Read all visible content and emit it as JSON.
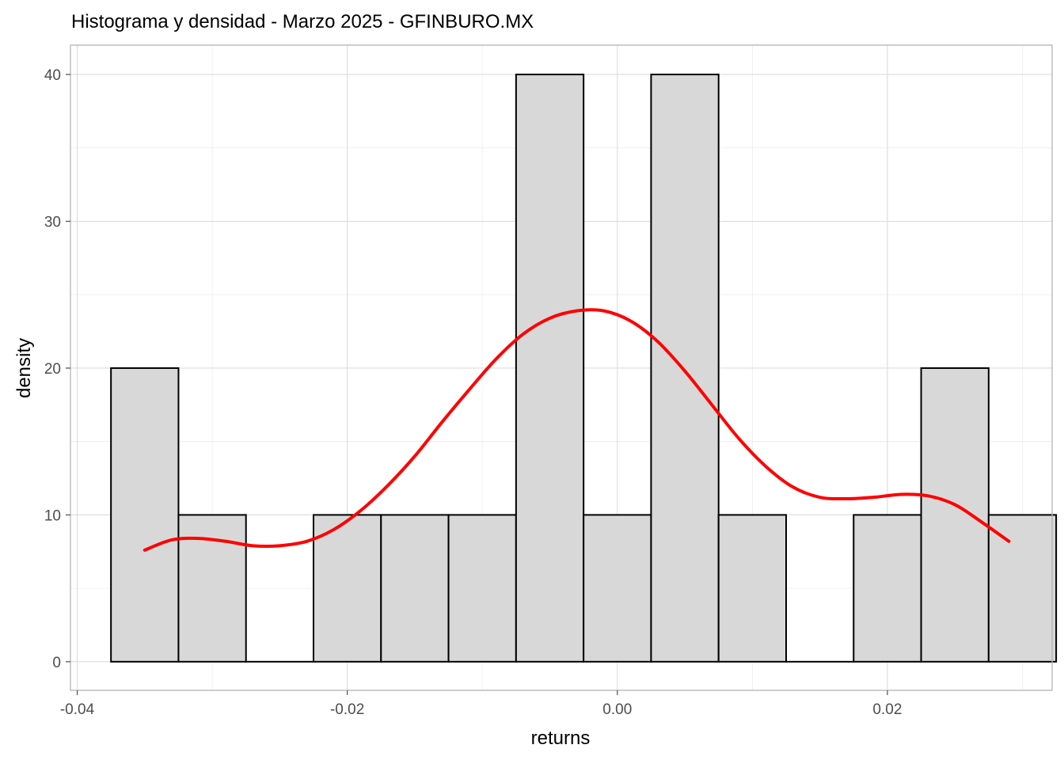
{
  "chart_data": {
    "type": "bar",
    "title": "Histograma y densidad - Marzo 2025 - GFINBURO.MX",
    "xlabel": "returns",
    "ylabel": "density",
    "xlim": [
      -0.0405,
      0.0322
    ],
    "ylim": [
      -1.95,
      42
    ],
    "x_ticks": [
      -0.04,
      -0.02,
      0.0,
      0.02
    ],
    "x_tick_labels": [
      "-0.04",
      "-0.02",
      "0.00",
      "0.02"
    ],
    "x_minor_ticks": [
      -0.03,
      -0.01,
      0.01,
      0.03
    ],
    "y_ticks": [
      0,
      10,
      20,
      30,
      40
    ],
    "y_tick_labels": [
      "0",
      "10",
      "20",
      "30",
      "40"
    ],
    "y_minor_ticks": [
      5,
      15,
      25,
      35
    ],
    "grid": true,
    "colors": {
      "bar_fill": "#d8d8d8",
      "bar_outline": "#000000",
      "density_line": "#ff0000"
    },
    "bins": [
      {
        "x0": -0.0375,
        "x1": -0.0325,
        "density": 20
      },
      {
        "x0": -0.0325,
        "x1": -0.0275,
        "density": 10
      },
      {
        "x0": -0.0275,
        "x1": -0.0225,
        "density": 0
      },
      {
        "x0": -0.0225,
        "x1": -0.0175,
        "density": 10
      },
      {
        "x0": -0.0175,
        "x1": -0.0125,
        "density": 10
      },
      {
        "x0": -0.0125,
        "x1": -0.0075,
        "density": 10
      },
      {
        "x0": -0.0075,
        "x1": -0.0025,
        "density": 40
      },
      {
        "x0": -0.0025,
        "x1": 0.0025,
        "density": 10
      },
      {
        "x0": 0.0025,
        "x1": 0.0075,
        "density": 40
      },
      {
        "x0": 0.0075,
        "x1": 0.0125,
        "density": 10
      },
      {
        "x0": 0.0125,
        "x1": 0.0175,
        "density": 0
      },
      {
        "x0": 0.0175,
        "x1": 0.0225,
        "density": 10
      },
      {
        "x0": 0.0225,
        "x1": 0.0275,
        "density": 20
      },
      {
        "x0": 0.0275,
        "x1": 0.0325,
        "density": 10
      }
    ],
    "density_curve": {
      "x": [
        -0.035,
        -0.033,
        -0.031,
        -0.029,
        -0.027,
        -0.025,
        -0.023,
        -0.021,
        -0.019,
        -0.017,
        -0.015,
        -0.013,
        -0.011,
        -0.009,
        -0.007,
        -0.005,
        -0.003,
        -0.001,
        0.001,
        0.003,
        0.005,
        0.007,
        0.009,
        0.011,
        0.013,
        0.015,
        0.017,
        0.019,
        0.021,
        0.023,
        0.025,
        0.027,
        0.029
      ],
      "y": [
        7.6,
        8.3,
        8.4,
        8.2,
        7.9,
        7.9,
        8.2,
        9.0,
        10.3,
        12.0,
        14.0,
        16.3,
        18.5,
        20.6,
        22.3,
        23.4,
        23.9,
        23.9,
        23.2,
        21.8,
        19.8,
        17.5,
        15.2,
        13.3,
        11.9,
        11.2,
        11.1,
        11.2,
        11.4,
        11.3,
        10.7,
        9.5,
        8.2
      ]
    }
  }
}
